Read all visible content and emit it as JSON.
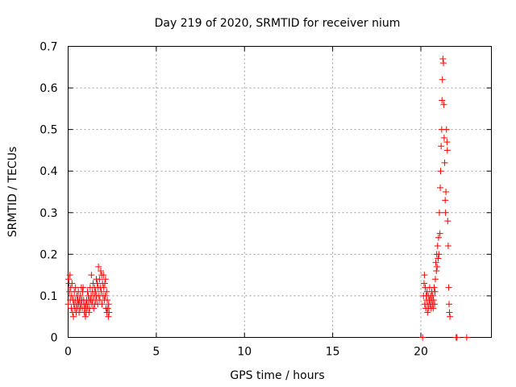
{
  "chart_data": {
    "type": "scatter",
    "title": "Day 219 of 2020, SRMTID for receiver nium",
    "xlabel": "GPS time / hours",
    "ylabel": "SRMTID / TECUs",
    "xlim": [
      0,
      24
    ],
    "ylim": [
      0,
      0.7
    ],
    "grid": true,
    "legend": "none",
    "marker": "+",
    "color": "#ff0000",
    "x_ticks": [
      0,
      5,
      10,
      15,
      20
    ],
    "x_tick_labels": [
      "0",
      "5",
      "10",
      "15",
      "20"
    ],
    "y_ticks": [
      0,
      0.1,
      0.2,
      0.3,
      0.4,
      0.5,
      0.6,
      0.7
    ],
    "y_tick_labels": [
      "0",
      "0.1",
      "0.2",
      "0.3",
      "0.4",
      "0.5",
      "0.6",
      "0.7"
    ],
    "series": [
      {
        "name": "SRMTID",
        "points": [
          [
            0.0,
            0.08
          ],
          [
            0.02,
            0.14
          ],
          [
            0.05,
            0.13
          ],
          [
            0.08,
            0.11
          ],
          [
            0.1,
            0.15
          ],
          [
            0.12,
            0.09
          ],
          [
            0.15,
            0.12
          ],
          [
            0.18,
            0.07
          ],
          [
            0.2,
            0.1
          ],
          [
            0.22,
            0.13
          ],
          [
            0.25,
            0.06
          ],
          [
            0.28,
            0.09
          ],
          [
            0.3,
            0.05
          ],
          [
            0.33,
            0.08
          ],
          [
            0.35,
            0.11
          ],
          [
            0.38,
            0.07
          ],
          [
            0.4,
            0.09
          ],
          [
            0.42,
            0.12
          ],
          [
            0.45,
            0.06
          ],
          [
            0.48,
            0.08
          ],
          [
            0.5,
            0.1
          ],
          [
            0.52,
            0.07
          ],
          [
            0.55,
            0.09
          ],
          [
            0.58,
            0.11
          ],
          [
            0.6,
            0.08
          ],
          [
            0.62,
            0.06
          ],
          [
            0.65,
            0.09
          ],
          [
            0.68,
            0.07
          ],
          [
            0.7,
            0.1
          ],
          [
            0.72,
            0.08
          ],
          [
            0.75,
            0.12
          ],
          [
            0.78,
            0.09
          ],
          [
            0.8,
            0.07
          ],
          [
            0.82,
            0.11
          ],
          [
            0.85,
            0.12
          ],
          [
            0.88,
            0.09
          ],
          [
            0.9,
            0.08
          ],
          [
            0.92,
            0.06
          ],
          [
            0.95,
            0.07
          ],
          [
            0.98,
            0.05
          ],
          [
            1.0,
            0.08
          ],
          [
            1.02,
            0.06
          ],
          [
            1.05,
            0.09
          ],
          [
            1.08,
            0.07
          ],
          [
            1.1,
            0.11
          ],
          [
            1.12,
            0.08
          ],
          [
            1.15,
            0.1
          ],
          [
            1.18,
            0.06
          ],
          [
            1.2,
            0.09
          ],
          [
            1.22,
            0.07
          ],
          [
            1.25,
            0.12
          ],
          [
            1.28,
            0.09
          ],
          [
            1.3,
            0.1
          ],
          [
            1.32,
            0.15
          ],
          [
            1.35,
            0.08
          ],
          [
            1.38,
            0.11
          ],
          [
            1.4,
            0.09
          ],
          [
            1.42,
            0.13
          ],
          [
            1.45,
            0.07
          ],
          [
            1.48,
            0.1
          ],
          [
            1.5,
            0.12
          ],
          [
            1.52,
            0.08
          ],
          [
            1.55,
            0.11
          ],
          [
            1.58,
            0.09
          ],
          [
            1.6,
            0.14
          ],
          [
            1.62,
            0.1
          ],
          [
            1.65,
            0.13
          ],
          [
            1.68,
            0.08
          ],
          [
            1.7,
            0.12
          ],
          [
            1.72,
            0.17
          ],
          [
            1.75,
            0.1
          ],
          [
            1.78,
            0.14
          ],
          [
            1.8,
            0.09
          ],
          [
            1.82,
            0.12
          ],
          [
            1.85,
            0.16
          ],
          [
            1.88,
            0.11
          ],
          [
            1.9,
            0.15
          ],
          [
            1.92,
            0.08
          ],
          [
            1.95,
            0.13
          ],
          [
            1.98,
            0.1
          ],
          [
            2.0,
            0.15
          ],
          [
            2.02,
            0.12
          ],
          [
            2.05,
            0.09
          ],
          [
            2.08,
            0.13
          ],
          [
            2.1,
            0.1
          ],
          [
            2.12,
            0.14
          ],
          [
            2.15,
            0.07
          ],
          [
            2.18,
            0.11
          ],
          [
            2.2,
            0.06
          ],
          [
            2.22,
            0.09
          ],
          [
            2.25,
            0.07
          ],
          [
            2.28,
            0.05
          ],
          [
            2.3,
            0.08
          ],
          [
            2.32,
            0.06
          ],
          [
            20.1,
            0.0
          ],
          [
            20.15,
            0.1
          ],
          [
            20.18,
            0.13
          ],
          [
            20.2,
            0.15
          ],
          [
            20.22,
            0.08
          ],
          [
            20.25,
            0.12
          ],
          [
            20.28,
            0.07
          ],
          [
            20.3,
            0.1
          ],
          [
            20.32,
            0.09
          ],
          [
            20.35,
            0.11
          ],
          [
            20.38,
            0.06
          ],
          [
            20.4,
            0.08
          ],
          [
            20.42,
            0.1
          ],
          [
            20.45,
            0.07
          ],
          [
            20.48,
            0.09
          ],
          [
            20.5,
            0.12
          ],
          [
            20.52,
            0.08
          ],
          [
            20.55,
            0.1
          ],
          [
            20.58,
            0.07
          ],
          [
            20.6,
            0.09
          ],
          [
            20.62,
            0.11
          ],
          [
            20.65,
            0.08
          ],
          [
            20.68,
            0.1
          ],
          [
            20.7,
            0.07
          ],
          [
            20.72,
            0.09
          ],
          [
            20.75,
            0.12
          ],
          [
            20.78,
            0.08
          ],
          [
            20.8,
            0.11
          ],
          [
            20.82,
            0.14
          ],
          [
            20.85,
            0.18
          ],
          [
            20.88,
            0.16
          ],
          [
            20.9,
            0.2
          ],
          [
            20.92,
            0.17
          ],
          [
            20.95,
            0.22
          ],
          [
            20.98,
            0.19
          ],
          [
            21.0,
            0.24
          ],
          [
            21.02,
            0.2
          ],
          [
            21.05,
            0.3
          ],
          [
            21.08,
            0.25
          ],
          [
            21.1,
            0.36
          ],
          [
            21.12,
            0.4
          ],
          [
            21.15,
            0.46
          ],
          [
            21.18,
            0.5
          ],
          [
            21.2,
            0.57
          ],
          [
            21.22,
            0.62
          ],
          [
            21.25,
            0.67
          ],
          [
            21.28,
            0.66
          ],
          [
            21.3,
            0.56
          ],
          [
            21.32,
            0.48
          ],
          [
            21.35,
            0.42
          ],
          [
            21.38,
            0.33
          ],
          [
            21.4,
            0.3
          ],
          [
            21.42,
            0.35
          ],
          [
            21.45,
            0.5
          ],
          [
            21.48,
            0.47
          ],
          [
            21.5,
            0.45
          ],
          [
            21.52,
            0.28
          ],
          [
            21.55,
            0.22
          ],
          [
            21.58,
            0.12
          ],
          [
            21.6,
            0.08
          ],
          [
            21.62,
            0.06
          ],
          [
            21.65,
            0.05
          ],
          [
            22.0,
            0.0
          ],
          [
            22.05,
            0.0
          ],
          [
            22.6,
            0.0
          ]
        ]
      }
    ]
  }
}
